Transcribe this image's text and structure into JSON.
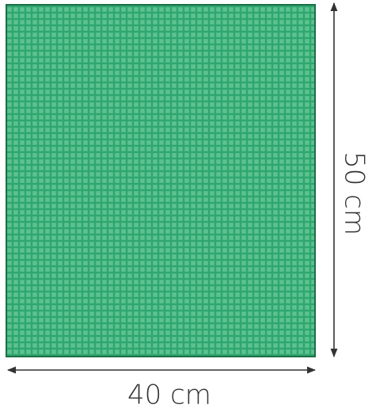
{
  "product": {
    "color": "#2fa66f",
    "grid_line_color": "#5cc28f",
    "border_color": "#1c6e47"
  },
  "dimensions": {
    "width_label": "40 cm",
    "height_label": "50 cm",
    "arrow_color": "#333333"
  }
}
